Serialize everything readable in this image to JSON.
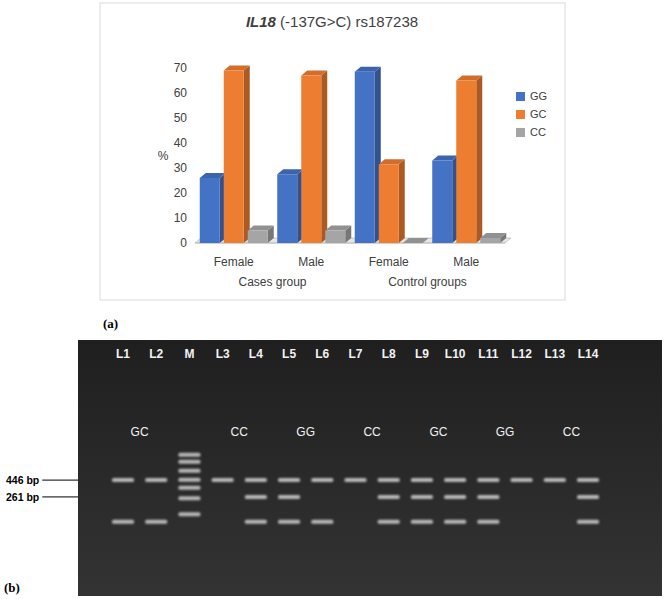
{
  "chart_data": {
    "type": "bar",
    "title": "IL18 (-137G>C) rs187238",
    "y_label": "%",
    "categories": [
      "Female",
      "Male",
      "Female",
      "Male"
    ],
    "groups": [
      "Cases group",
      "Control groups"
    ],
    "series": [
      {
        "name": "GG",
        "color": "#4472c4",
        "values": [
          26,
          27.5,
          68.5,
          33
        ]
      },
      {
        "name": "GC",
        "color": "#ed7d31",
        "values": [
          69,
          67,
          31.5,
          65
        ]
      },
      {
        "name": "CC",
        "color": "#a5a5a5",
        "values": [
          5,
          5,
          0,
          2
        ]
      }
    ],
    "ylim": [
      0,
      70
    ],
    "yticks": [
      0,
      10,
      20,
      30,
      40,
      50,
      60,
      70
    ],
    "grid": false,
    "legend": "right"
  },
  "panel_labels": [
    "(a)",
    "(b)"
  ],
  "gel": {
    "size_range": [
      35,
      2200
    ],
    "lanes": [
      {
        "label": "L1",
        "bands": [
          446,
          118
        ]
      },
      {
        "label": "L2",
        "bands": [
          446,
          118
        ]
      },
      {
        "label": "M",
        "bands": [
          1000,
          800,
          600,
          450,
          350,
          250,
          150
        ]
      },
      {
        "label": "L3",
        "bands": [
          446
        ]
      },
      {
        "label": "L4",
        "bands": [
          446,
          261,
          118
        ]
      },
      {
        "label": "L5",
        "bands": [
          446,
          261,
          118
        ]
      },
      {
        "label": "L6",
        "bands": [
          446,
          118
        ]
      },
      {
        "label": "L7",
        "bands": [
          446
        ]
      },
      {
        "label": "L8",
        "bands": [
          446,
          261,
          118
        ]
      },
      {
        "label": "L9",
        "bands": [
          446,
          261,
          118
        ]
      },
      {
        "label": "L10",
        "bands": [
          446,
          261,
          118
        ]
      },
      {
        "label": "L11",
        "bands": [
          446,
          261,
          118
        ]
      },
      {
        "label": "L12",
        "bands": [
          446
        ]
      },
      {
        "label": "L13",
        "bands": [
          446
        ]
      },
      {
        "label": "L14",
        "bands": [
          446,
          261,
          118
        ]
      }
    ],
    "genotypes": [
      {
        "label": "GC",
        "lanes": [
          "L1",
          "L2"
        ]
      },
      {
        "label": "CC",
        "lanes": [
          "L3",
          "L4"
        ]
      },
      {
        "label": "GG",
        "lanes": [
          "L5",
          "L6"
        ]
      },
      {
        "label": "CC",
        "lanes": [
          "L7",
          "L8"
        ]
      },
      {
        "label": "GC",
        "lanes": [
          "L9",
          "L10"
        ]
      },
      {
        "label": "GG",
        "lanes": [
          "L11",
          "L12"
        ]
      },
      {
        "label": "CC",
        "lanes": [
          "L13",
          "L14"
        ]
      }
    ],
    "size_markers": [
      {
        "value": 446,
        "label": "446 bp"
      },
      {
        "value": 261,
        "label": "261 bp"
      }
    ]
  }
}
